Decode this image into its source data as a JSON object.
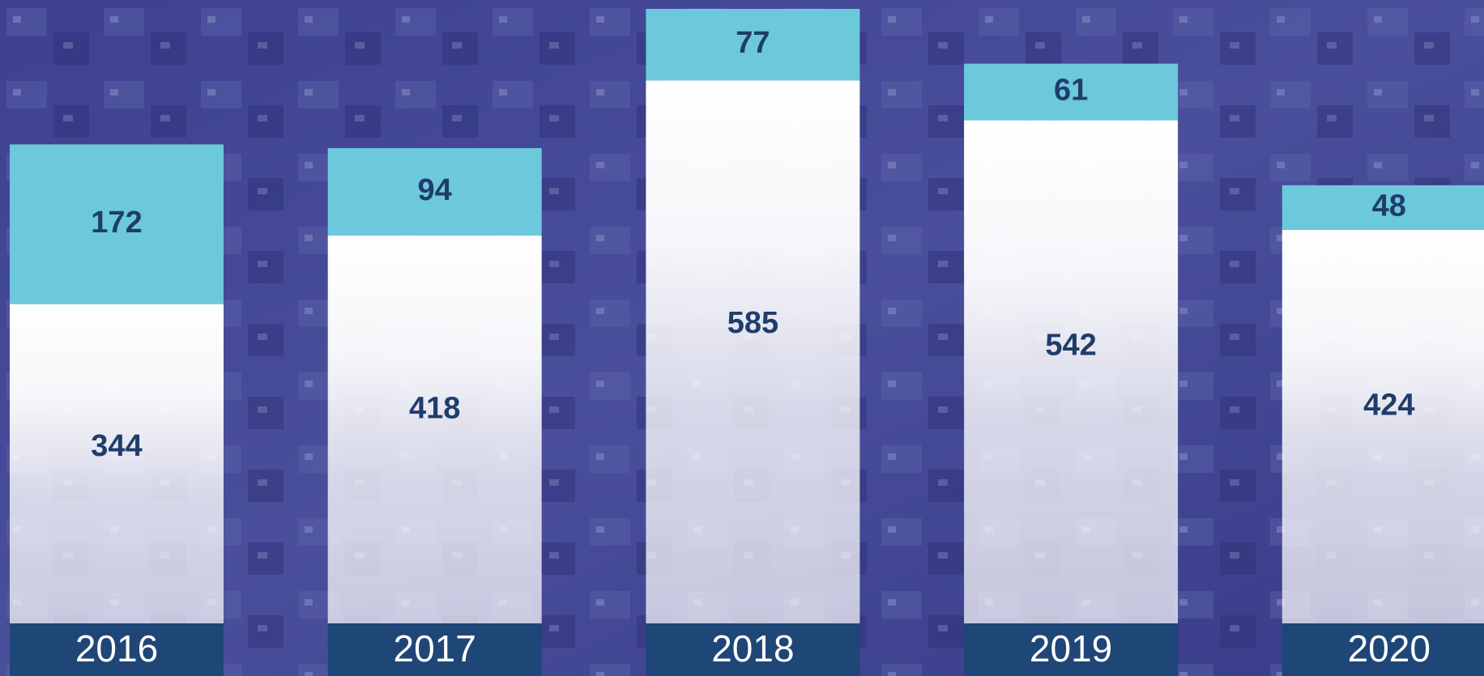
{
  "chart_data": {
    "type": "stacked-bar",
    "categories": [
      "2016",
      "2017",
      "2018",
      "2019",
      "2020"
    ],
    "series": [
      {
        "color": "#ffffff",
        "values": [
          344,
          418,
          585,
          542,
          424
        ]
      },
      {
        "color": "#6cc9dc",
        "values": [
          172,
          94,
          77,
          61,
          48
        ]
      }
    ]
  }
}
